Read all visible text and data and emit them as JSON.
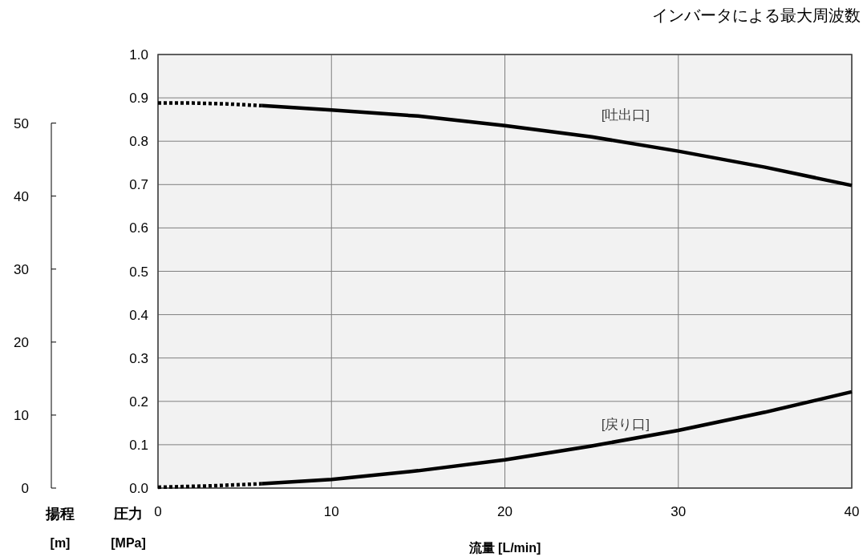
{
  "chart_data": {
    "type": "line",
    "xlabel": "流量 [L/min]",
    "ylabel": "圧力 [MPa]",
    "y2label": "揚程 [m]",
    "annotations": [
      "インバータによる最大周波数"
    ],
    "xlim": [
      0,
      40
    ],
    "xticks": [
      0,
      10,
      20,
      30,
      40
    ],
    "ylim": [
      0,
      1
    ],
    "yticks": [
      {
        "value": 0,
        "label": "0.0"
      },
      {
        "value": 0.1,
        "label": "0.1"
      },
      {
        "value": 0.2,
        "label": "0.2"
      },
      {
        "value": 0.3,
        "label": "0.3"
      },
      {
        "value": 0.4,
        "label": "0.4"
      },
      {
        "value": 0.5,
        "label": "0.5"
      },
      {
        "value": 0.6,
        "label": "0.6"
      },
      {
        "value": 0.7,
        "label": "0.7"
      },
      {
        "value": 0.8,
        "label": "0.8"
      },
      {
        "value": 0.9,
        "label": "0.9"
      },
      {
        "value": 1,
        "label": "1.0"
      }
    ],
    "y2lim": [
      0,
      59.4
    ],
    "y2ticks": [
      0,
      10,
      20,
      30,
      40,
      50
    ],
    "grid": true,
    "series": [
      {
        "color": "#000000",
        "line_style": "dotted",
        "x": [
          0,
          2,
          4,
          6
        ],
        "values": [
          0.888,
          0.888,
          0.886,
          0.882
        ]
      },
      {
        "name": "[吐出口]",
        "color": "#000000",
        "line_style": "solid",
        "x": [
          6,
          10,
          15,
          20,
          25,
          30,
          35,
          40
        ],
        "values": [
          0.882,
          0.872,
          0.858,
          0.836,
          0.81,
          0.777,
          0.74,
          0.698
        ]
      },
      {
        "color": "#000000",
        "line_style": "dotted",
        "x": [
          0,
          3,
          6
        ],
        "values": [
          0.002,
          0.005,
          0.01
        ]
      },
      {
        "name": "[戻り口]",
        "color": "#000000",
        "line_style": "solid",
        "x": [
          6,
          10,
          15,
          20,
          25,
          30,
          35,
          40
        ],
        "values": [
          0.01,
          0.02,
          0.04,
          0.065,
          0.097,
          0.133,
          0.175,
          0.222
        ]
      }
    ]
  }
}
